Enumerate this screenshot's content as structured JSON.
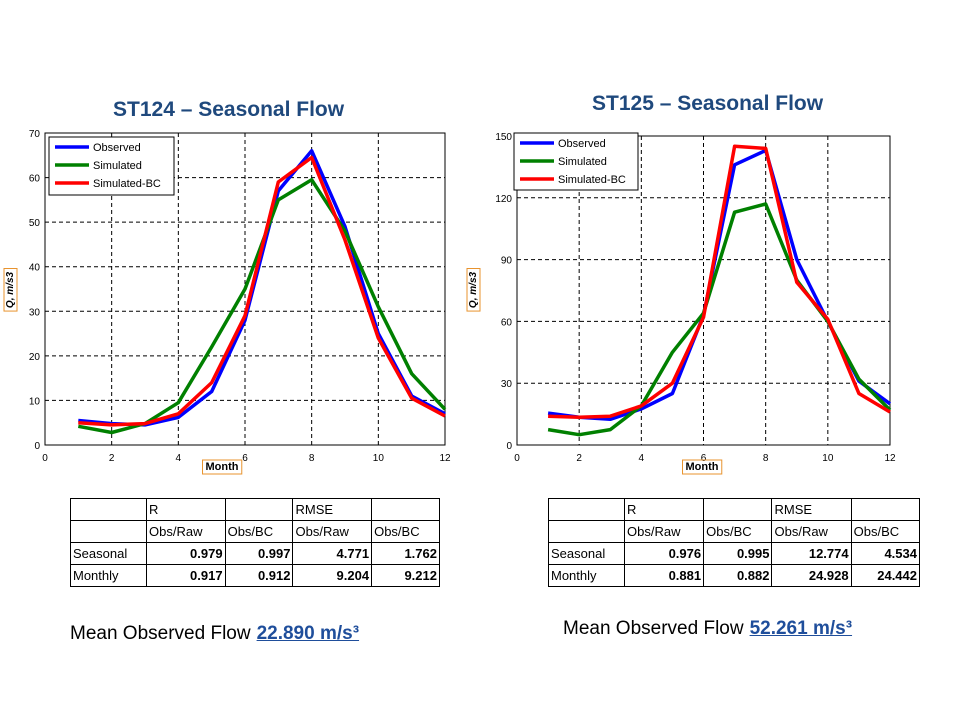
{
  "chart_data": [
    {
      "type": "line",
      "title": "ST124  – Seasonal Flow",
      "xlabel": "Month",
      "ylabel": "Q, m/s3",
      "xlim": [
        0,
        12
      ],
      "ylim": [
        0,
        70
      ],
      "xticks": [
        0,
        2,
        4,
        6,
        8,
        10,
        12
      ],
      "yticks": [
        0,
        10,
        20,
        30,
        40,
        50,
        60,
        70
      ],
      "grid": true,
      "legend_position": "top-left",
      "x": [
        1,
        2,
        3,
        4,
        5,
        6,
        7,
        8,
        9,
        10,
        11,
        12
      ],
      "series": [
        {
          "name": "Observed",
          "color": "#0000ff",
          "values": [
            5.5,
            4.8,
            4.5,
            6.2,
            12,
            28,
            57,
            66,
            49,
            25,
            11,
            7
          ]
        },
        {
          "name": "Simulated",
          "color": "#008000",
          "values": [
            4.2,
            2.8,
            4.8,
            9.5,
            22,
            35,
            55,
            59.5,
            48,
            31,
            16,
            8
          ]
        },
        {
          "name": "Simulated-BC",
          "color": "#ff0000",
          "values": [
            5,
            4.5,
            4.8,
            7,
            14,
            29,
            59,
            64.5,
            46,
            24,
            10.5,
            6.5
          ]
        }
      ]
    },
    {
      "type": "line",
      "title": "ST125  – Seasonal Flow",
      "xlabel": "Month",
      "ylabel": "Q, m/s3",
      "xlim": [
        0,
        12
      ],
      "ylim": [
        0,
        150
      ],
      "xticks": [
        0,
        2,
        4,
        6,
        8,
        10,
        12
      ],
      "yticks": [
        0,
        30,
        60,
        90,
        120,
        150
      ],
      "grid": true,
      "legend_position": "top-left",
      "x": [
        1,
        2,
        3,
        4,
        5,
        6,
        7,
        8,
        9,
        10,
        11,
        12
      ],
      "series": [
        {
          "name": "Observed",
          "color": "#0000ff",
          "values": [
            15.5,
            13.5,
            12.5,
            17.5,
            25,
            63,
            136,
            143,
            90,
            60,
            31,
            20
          ]
        },
        {
          "name": "Simulated",
          "color": "#008000",
          "values": [
            7.5,
            5,
            7.5,
            19,
            45,
            64,
            113,
            117,
            80,
            60,
            32,
            17
          ]
        },
        {
          "name": "Simulated-BC",
          "color": "#ff0000",
          "values": [
            14,
            13.5,
            14,
            19,
            30,
            62,
            145,
            144,
            79,
            61,
            25,
            16
          ]
        }
      ]
    }
  ],
  "tables": [
    {
      "header1": [
        "",
        "R",
        "",
        "RMSE",
        ""
      ],
      "header2": [
        "",
        "Obs/Raw",
        "Obs/BC",
        "Obs/Raw",
        "Obs/BC"
      ],
      "rows": [
        {
          "label": "Seasonal",
          "values": [
            "0.979",
            "0.997",
            "4.771",
            "1.762"
          ]
        },
        {
          "label": "Monthly",
          "values": [
            "0.917",
            "0.912",
            "9.204",
            "9.212"
          ]
        }
      ]
    },
    {
      "header1": [
        "",
        "R",
        "",
        "RMSE",
        ""
      ],
      "header2": [
        "",
        "Obs/Raw",
        "Obs/BC",
        "Obs/Raw",
        "Obs/BC"
      ],
      "rows": [
        {
          "label": "Seasonal",
          "values": [
            "0.976",
            "0.995",
            "12.774",
            "4.534"
          ]
        },
        {
          "label": "Monthly",
          "values": [
            "0.881",
            "0.882",
            "24.928",
            "24.442"
          ]
        }
      ]
    }
  ],
  "mean_flows": [
    {
      "label": "Mean Observed Flow",
      "value": "22.890 m/s³"
    },
    {
      "label": "Mean Observed Flow",
      "value": "52.261 m/s³"
    }
  ]
}
